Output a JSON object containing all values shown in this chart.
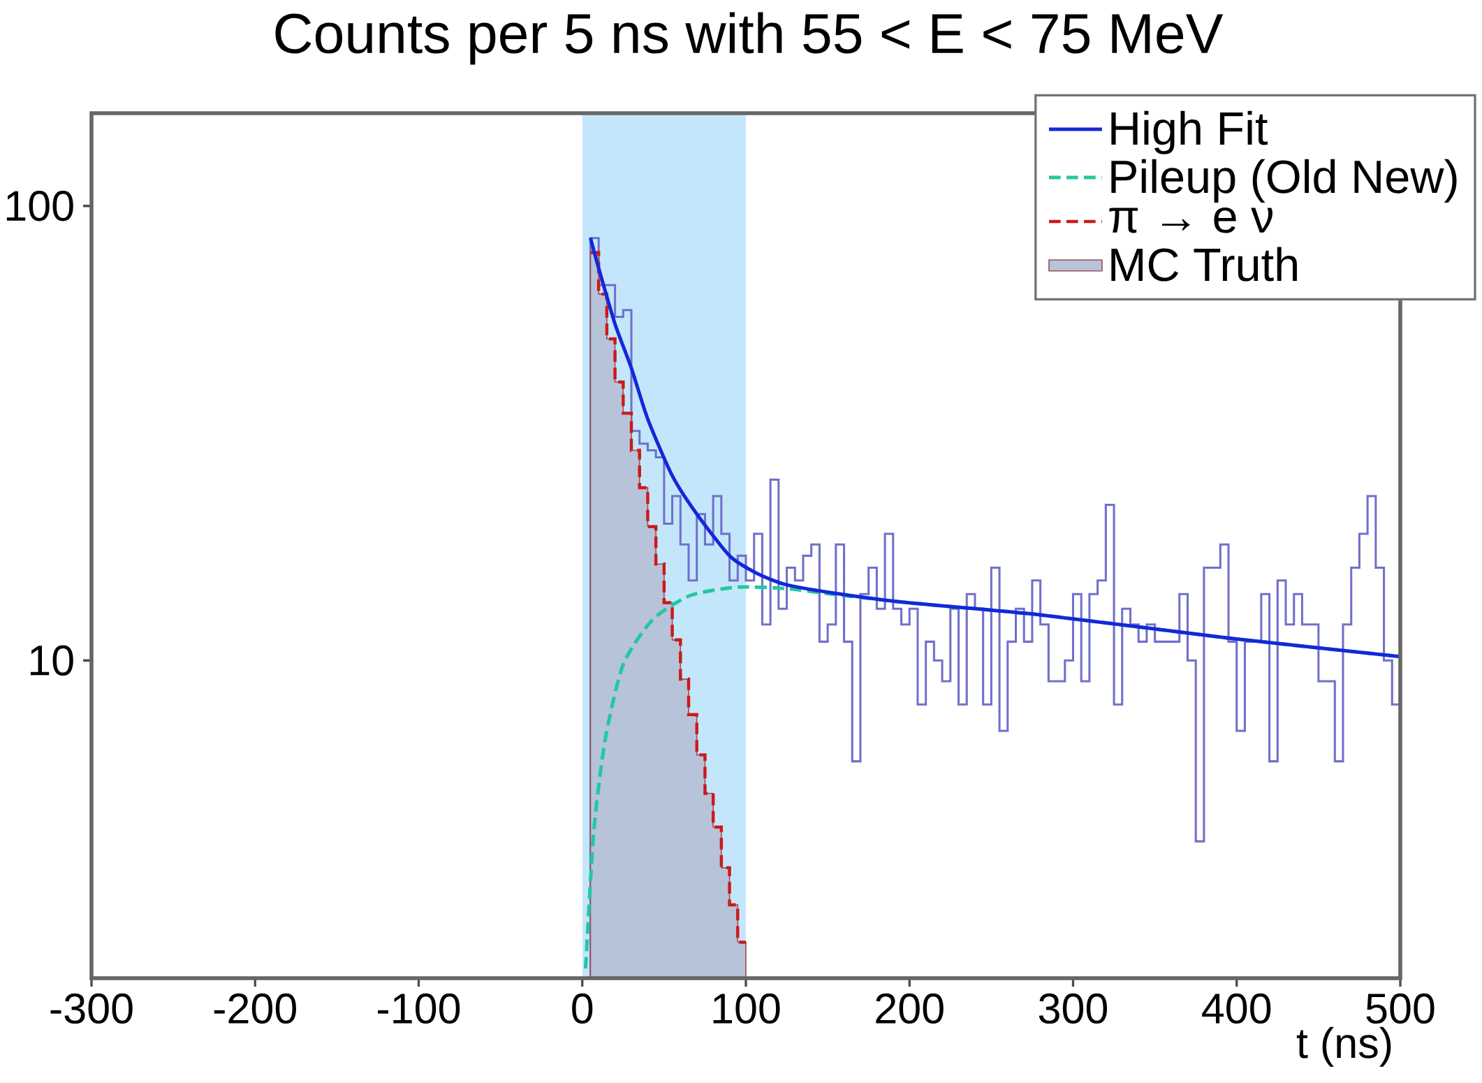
{
  "chart_data": {
    "type": "histogram",
    "title": "Counts per 5 ns with 55 < E < 75 MeV",
    "xlabel": "t (ns)",
    "xlim": [
      -300,
      500
    ],
    "ylim": [
      2,
      160
    ],
    "log": true,
    "legend": "top right",
    "xticks": [
      -300,
      -200,
      -100,
      0,
      100,
      200,
      300,
      400,
      500
    ],
    "yticks": [
      10,
      100
    ],
    "bands": [
      {
        "axis": "x",
        "from": 0,
        "to": 100,
        "color": "#c4e6fa"
      }
    ],
    "series": [
      {
        "color": "#7070cc",
        "bins": [
          5,
          10,
          15,
          20,
          25,
          30,
          35,
          40,
          45,
          50,
          55,
          60,
          65,
          70,
          75,
          80,
          85,
          90,
          95,
          100,
          105,
          110,
          115,
          120,
          125,
          130,
          135,
          140,
          145,
          150,
          155,
          160,
          165,
          170,
          175,
          180,
          185,
          190,
          195,
          200,
          205,
          210,
          215,
          220,
          225,
          230,
          235,
          240,
          245,
          250,
          255,
          260,
          265,
          270,
          275,
          280,
          285,
          290,
          295,
          300,
          305,
          310,
          315,
          320,
          325,
          330,
          335,
          340,
          345,
          350,
          355,
          360,
          365,
          370,
          375,
          380,
          385,
          390,
          395,
          400,
          405,
          410,
          415,
          420,
          425,
          430,
          435,
          440,
          445,
          450,
          455,
          460,
          465,
          470,
          475,
          480,
          485,
          490,
          495,
          500
        ],
        "values": [
          85,
          67,
          67,
          57,
          59,
          32,
          30,
          29,
          28,
          20,
          23,
          18,
          15,
          21,
          18,
          23,
          19,
          15,
          17,
          15,
          19,
          12,
          25,
          13,
          16,
          15,
          17,
          18,
          11,
          12,
          18,
          11,
          6,
          14,
          16,
          13,
          19,
          13,
          12,
          13,
          8,
          11,
          10,
          9,
          13,
          8,
          14,
          13,
          8,
          16,
          7,
          11,
          13,
          11,
          15,
          12,
          9,
          9,
          10,
          14,
          9,
          14,
          15,
          22,
          8,
          13,
          12,
          11,
          12,
          11,
          11,
          11,
          14,
          10,
          4,
          16,
          16,
          18,
          11,
          7,
          11,
          11,
          14,
          6,
          15,
          12,
          14,
          12,
          12,
          9,
          9,
          6,
          12,
          16,
          19,
          23,
          16,
          10,
          8
        ]
      },
      {
        "name": "MC Truth",
        "type": "histogram",
        "color": "#b7c3d9",
        "bins": [
          5,
          10,
          15,
          20,
          25,
          30,
          35,
          40,
          45,
          50,
          55,
          60,
          65,
          70,
          75,
          80,
          85,
          90,
          95,
          100
        ],
        "values": [
          79,
          64,
          51,
          41,
          35,
          29,
          24,
          19.7,
          16.3,
          13.4,
          11.1,
          9.1,
          7.6,
          6.2,
          5.1,
          4.3,
          3.5,
          2.9,
          2.4
        ]
      },
      {
        "name": "π → e ν",
        "type": "step",
        "color": "#cc1a1a",
        "line_style": "dashed",
        "x": [
          5,
          10,
          15,
          20,
          25,
          30,
          35,
          40,
          45,
          50,
          55,
          60,
          65,
          70,
          75,
          80,
          85,
          90,
          95,
          100
        ],
        "values": [
          79,
          64,
          51,
          41,
          35,
          29,
          24,
          19.7,
          16.3,
          13.4,
          11.1,
          9.1,
          7.6,
          6.2,
          5.1,
          4.3,
          3.5,
          2.9,
          2.4,
          2.4
        ]
      },
      {
        "name": "Pileup (Old New)",
        "type": "line",
        "color": "#22c8a0",
        "line_style": "dashed",
        "x": [
          2,
          7,
          14,
          25,
          43,
          66,
          95,
          124,
          152,
          199,
          280,
          395,
          500
        ],
        "values": [
          2.1,
          4.2,
          6.7,
          9.8,
          12.3,
          13.9,
          14.5,
          14.4,
          14.0,
          13.4,
          12.6,
          11.2,
          10.2
        ]
      },
      {
        "name": "High Fit",
        "type": "line",
        "color": "#1428d8",
        "line_style": "solid",
        "x": [
          5,
          10,
          20,
          30,
          40,
          55,
          70,
          90,
          106,
          124,
          152,
          199,
          280,
          395,
          500
        ],
        "values": [
          85,
          73,
          55,
          44,
          34,
          25.5,
          21,
          17,
          15.6,
          14.7,
          14.1,
          13.4,
          12.6,
          11.2,
          10.2
        ]
      }
    ]
  }
}
